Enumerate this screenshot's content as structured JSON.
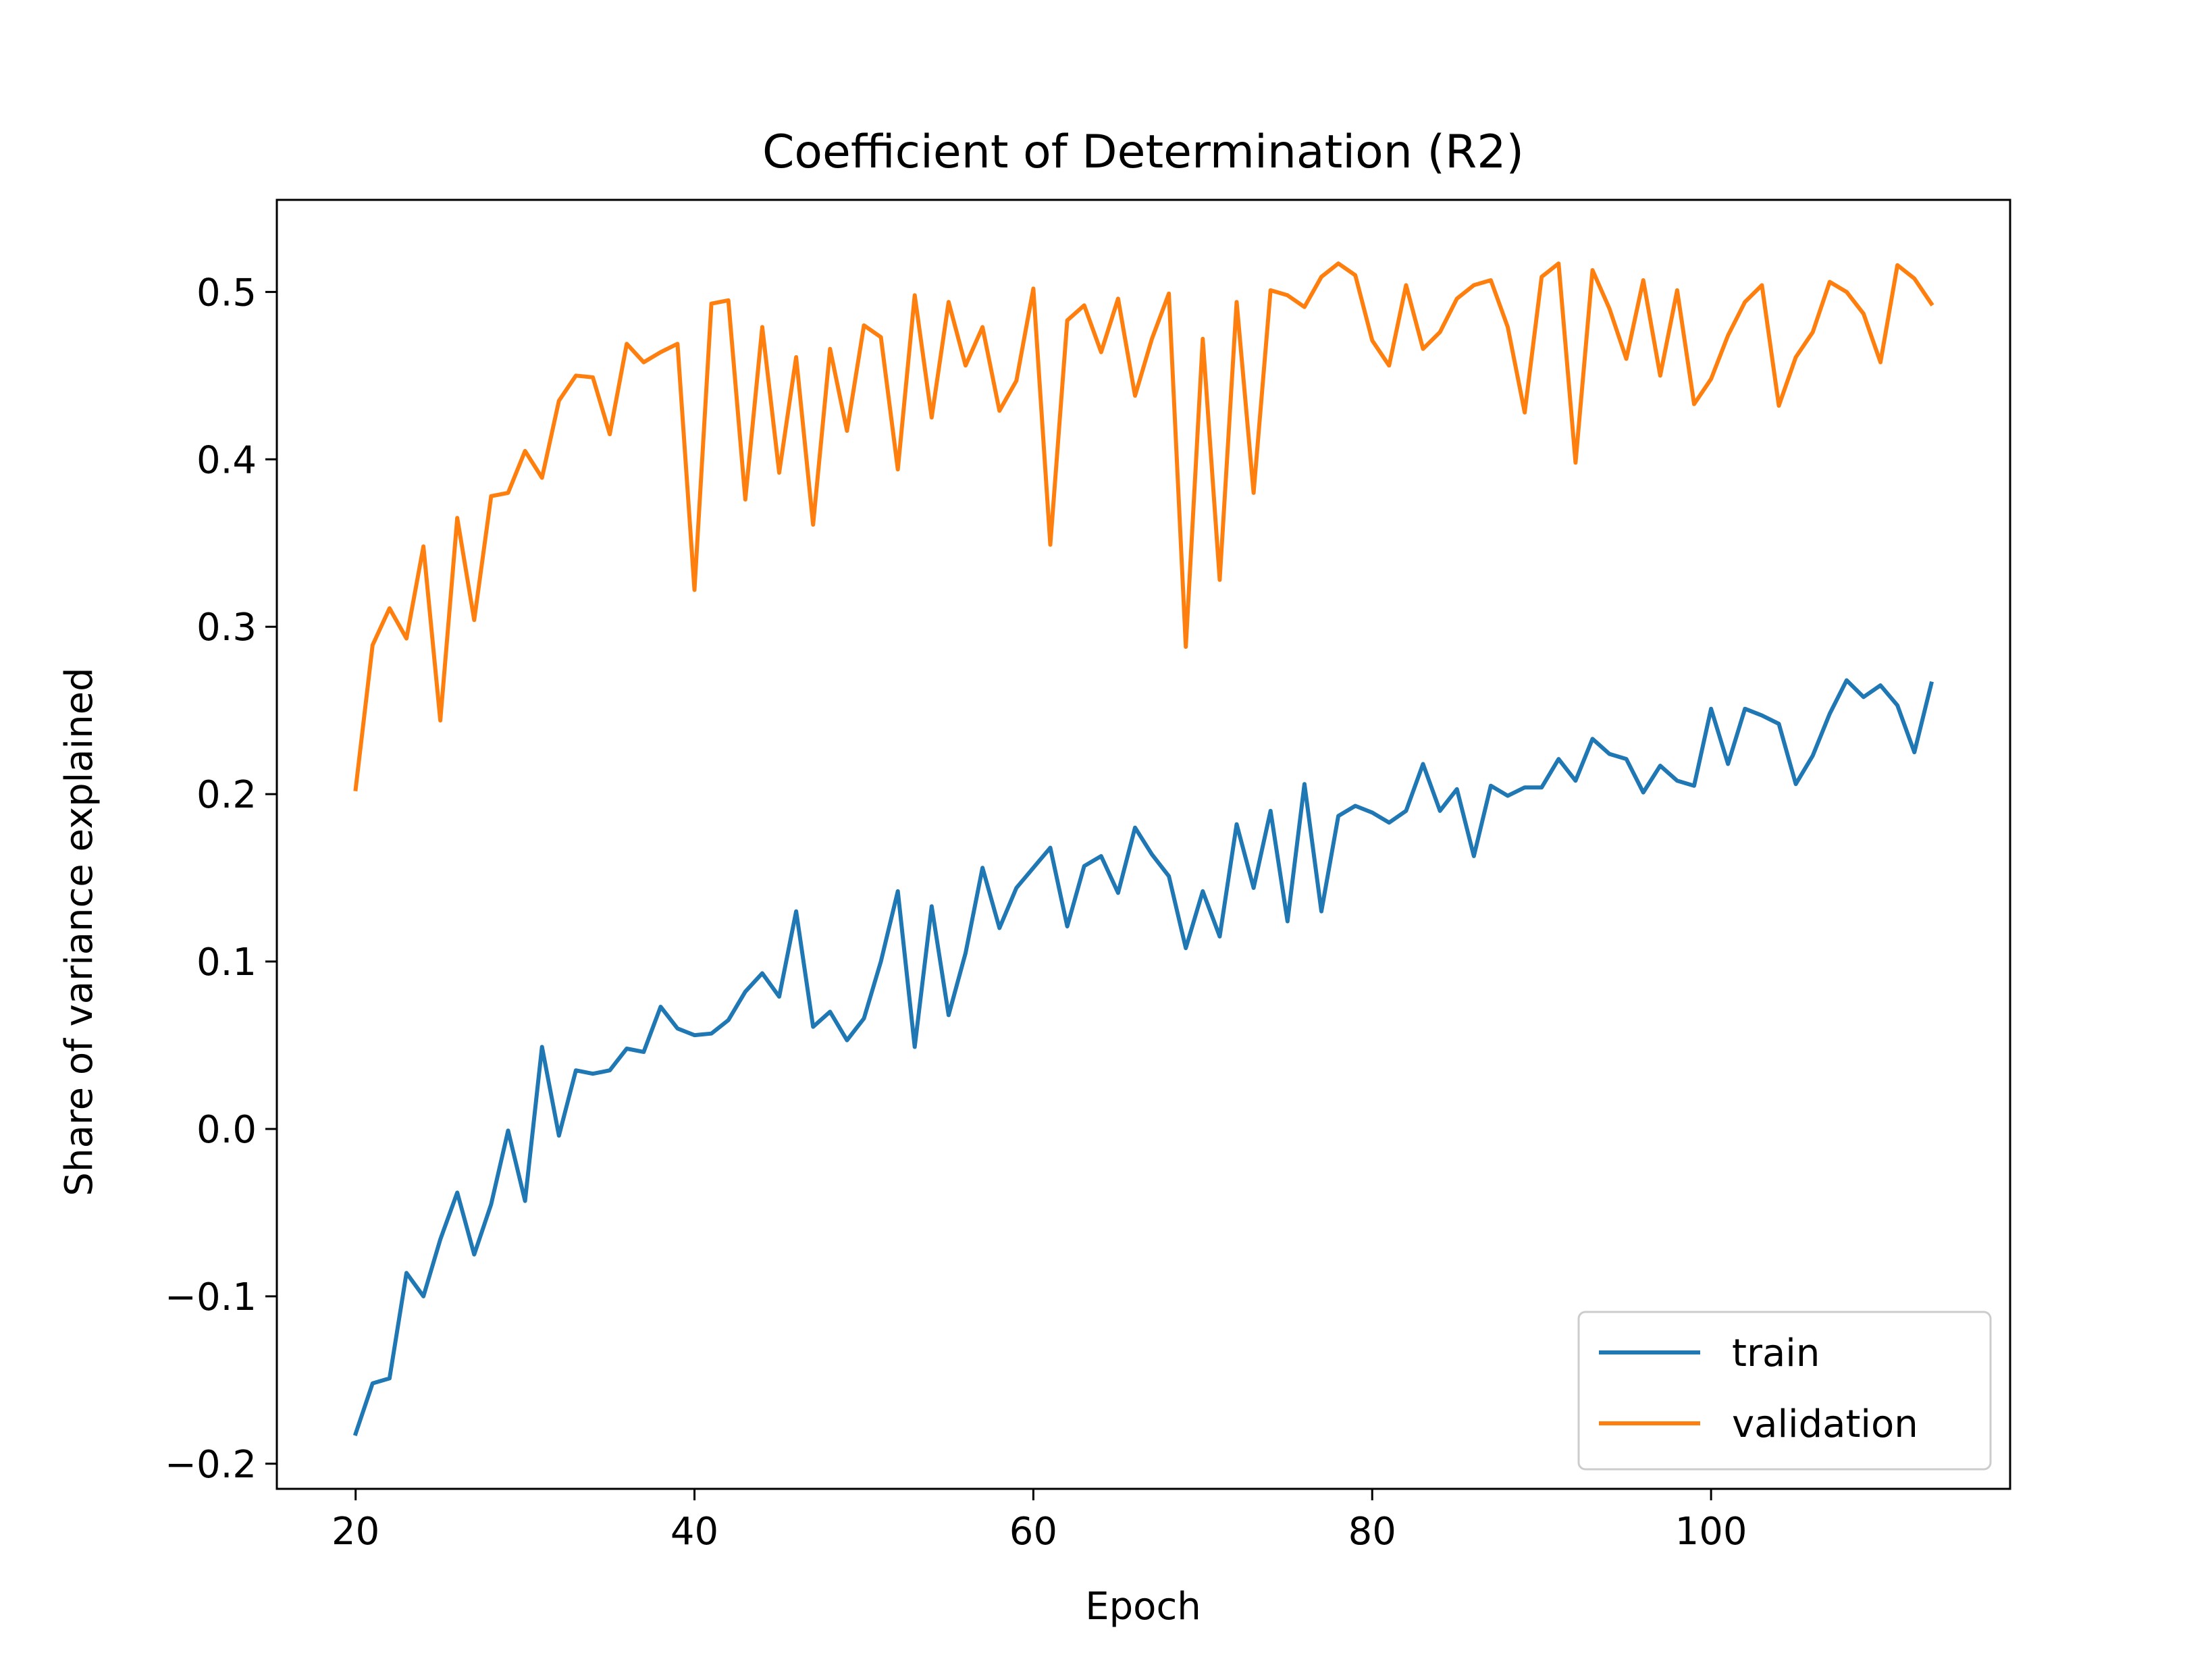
{
  "chart_data": {
    "type": "line",
    "title": "Coefficient of Determination (R2)",
    "xlabel": "Epoch",
    "ylabel": "Share of variance explained",
    "xlim": [
      15.35,
      117.65
    ],
    "ylim": [
      -0.215,
      0.555
    ],
    "xticks": [
      20,
      40,
      60,
      80,
      100
    ],
    "yticks": [
      -0.2,
      -0.1,
      0.0,
      0.1,
      0.2,
      0.3,
      0.4,
      0.5
    ],
    "ytick_labels": [
      "−0.2",
      "−0.1",
      "0.0",
      "0.1",
      "0.2",
      "0.3",
      "0.4",
      "0.5"
    ],
    "grid": false,
    "legend_position": "lower-right",
    "x_start": 20,
    "series": [
      {
        "name": "train",
        "color": "#1f77b4",
        "values": [
          -0.182,
          -0.152,
          -0.149,
          -0.086,
          -0.1,
          -0.066,
          -0.038,
          -0.075,
          -0.045,
          -0.001,
          -0.043,
          0.049,
          -0.004,
          0.035,
          0.033,
          0.035,
          0.048,
          0.046,
          0.073,
          0.06,
          0.056,
          0.057,
          0.065,
          0.082,
          0.093,
          0.079,
          0.13,
          0.061,
          0.07,
          0.053,
          0.066,
          0.1,
          0.142,
          0.049,
          0.133,
          0.068,
          0.105,
          0.156,
          0.12,
          0.144,
          0.156,
          0.168,
          0.121,
          0.157,
          0.163,
          0.141,
          0.18,
          0.164,
          0.151,
          0.108,
          0.142,
          0.115,
          0.182,
          0.144,
          0.19,
          0.124,
          0.206,
          0.13,
          0.187,
          0.193,
          0.189,
          0.183,
          0.19,
          0.218,
          0.19,
          0.203,
          0.163,
          0.205,
          0.199,
          0.204,
          0.204,
          0.221,
          0.208,
          0.233,
          0.224,
          0.221,
          0.201,
          0.217,
          0.208,
          0.205,
          0.251,
          0.218,
          0.251,
          0.247,
          0.242,
          0.206,
          0.223,
          0.248,
          0.268,
          0.258,
          0.265,
          0.253,
          0.225,
          0.266
        ]
      },
      {
        "name": "validation",
        "color": "#ff7f0e",
        "values": [
          0.203,
          0.289,
          0.311,
          0.293,
          0.348,
          0.244,
          0.365,
          0.304,
          0.378,
          0.38,
          0.405,
          0.389,
          0.435,
          0.45,
          0.449,
          0.415,
          0.469,
          0.458,
          0.464,
          0.469,
          0.322,
          0.493,
          0.495,
          0.376,
          0.479,
          0.392,
          0.461,
          0.361,
          0.466,
          0.417,
          0.48,
          0.473,
          0.394,
          0.498,
          0.425,
          0.494,
          0.456,
          0.479,
          0.429,
          0.447,
          0.502,
          0.349,
          0.483,
          0.492,
          0.464,
          0.496,
          0.438,
          0.472,
          0.499,
          0.288,
          0.472,
          0.328,
          0.494,
          0.38,
          0.501,
          0.498,
          0.491,
          0.509,
          0.517,
          0.51,
          0.471,
          0.456,
          0.504,
          0.466,
          0.476,
          0.496,
          0.504,
          0.507,
          0.479,
          0.428,
          0.509,
          0.517,
          0.398,
          0.513,
          0.49,
          0.46,
          0.507,
          0.45,
          0.501,
          0.433,
          0.448,
          0.474,
          0.494,
          0.504,
          0.432,
          0.461,
          0.476,
          0.506,
          0.5,
          0.487,
          0.458,
          0.516,
          0.508,
          0.493
        ]
      }
    ]
  }
}
